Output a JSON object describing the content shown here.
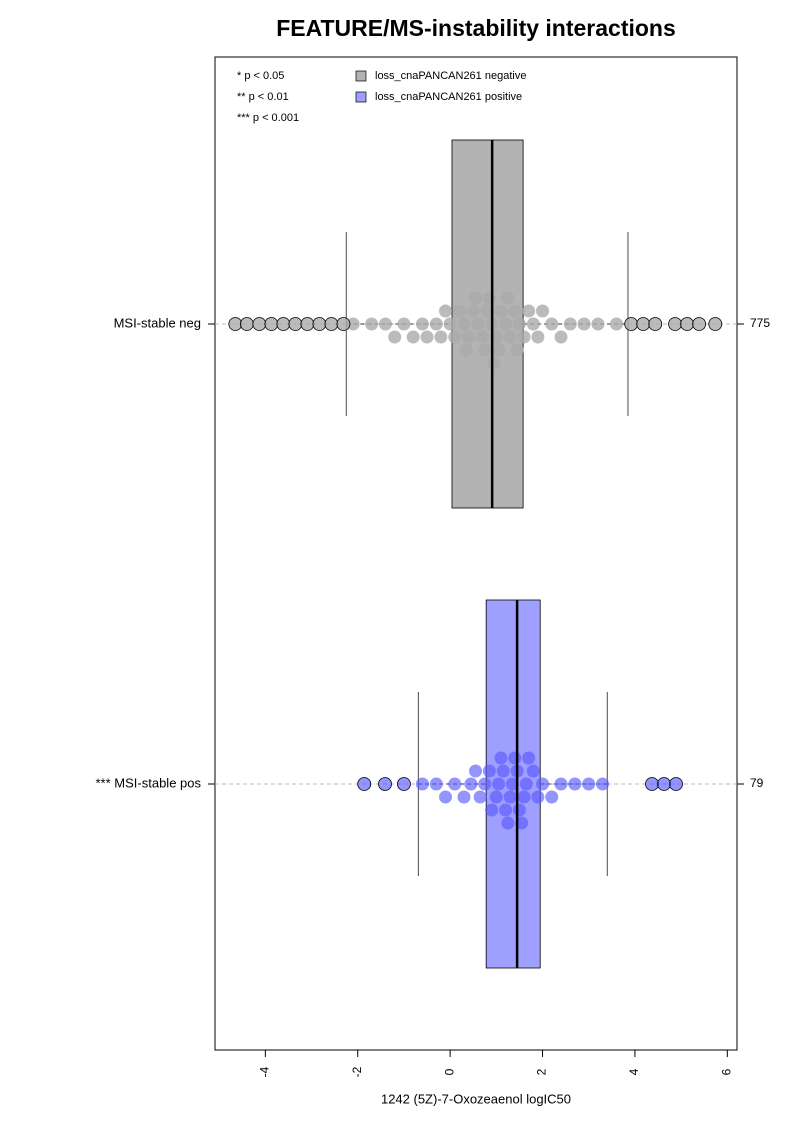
{
  "chart_data": {
    "type": "boxplot",
    "title": "FEATURE/MS-instability interactions",
    "xlabel": "1242 (5Z)-7-Oxozeaenol logIC50",
    "xlim": [
      -5.09,
      6.21
    ],
    "xticks": [
      -4,
      -2,
      0,
      2,
      4,
      6
    ],
    "categories": [
      "MSI-stable neg",
      "*** MSI-stable pos"
    ],
    "counts": [
      775,
      79
    ],
    "notes": [
      "* p < 0.05",
      "** p < 0.01",
      "*** p < 0.001"
    ],
    "series": [
      {
        "name": "loss_cnaPANCAN261 negative",
        "color": "#b3b3b3",
        "whislo": -2.25,
        "q1": 0.04,
        "median": 0.91,
        "q3": 1.58,
        "whishi": 3.85,
        "outliers": [
          -4.65,
          -4.4,
          -4.13,
          -3.87,
          -3.61,
          -3.35,
          -3.09,
          -2.83,
          -2.57,
          -2.31,
          3.92,
          4.18,
          4.44,
          4.87,
          5.13,
          5.39,
          5.74
        ],
        "points": [
          -2.1,
          -1.7,
          -1.4,
          -1.2,
          -1.0,
          -0.8,
          -0.6,
          -0.5,
          -0.3,
          -0.2,
          -0.1,
          0.0,
          0.1,
          0.2,
          0.3,
          0.35,
          0.4,
          0.5,
          0.55,
          0.6,
          0.7,
          0.75,
          0.8,
          0.85,
          0.9,
          0.95,
          1.0,
          1.05,
          1.1,
          1.2,
          1.25,
          1.3,
          1.4,
          1.45,
          1.5,
          1.6,
          1.7,
          1.8,
          1.9,
          2.0,
          2.2,
          2.4,
          2.6,
          2.9,
          3.2,
          3.6
        ]
      },
      {
        "name": "loss_cnaPANCAN261 positive",
        "color": "#9f9fff",
        "whislo": -0.69,
        "q1": 0.78,
        "median": 1.45,
        "q3": 1.95,
        "whishi": 3.4,
        "outliers": [
          -1.86,
          -1.41,
          -1.0,
          4.37,
          4.63,
          4.89
        ],
        "points": [
          -0.6,
          -0.3,
          -0.1,
          0.1,
          0.3,
          0.45,
          0.55,
          0.65,
          0.75,
          0.85,
          0.9,
          1.0,
          1.05,
          1.1,
          1.15,
          1.2,
          1.25,
          1.3,
          1.35,
          1.4,
          1.45,
          1.5,
          1.55,
          1.6,
          1.65,
          1.7,
          1.8,
          1.9,
          2.0,
          2.2,
          2.4,
          2.7,
          3.0,
          3.3
        ]
      }
    ]
  }
}
